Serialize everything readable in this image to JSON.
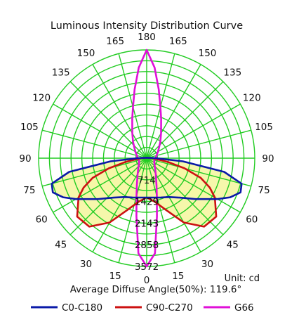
{
  "chart_data": {
    "type": "polar",
    "title": "Luminous Intensity Distribution Curve",
    "unit_label": "Unit: cd",
    "angle_ticks": [
      "0",
      "15",
      "30",
      "45",
      "60",
      "75",
      "90",
      "105",
      "120",
      "135",
      "150",
      "165",
      "180"
    ],
    "radial_labels": [
      "714",
      "1429",
      "2143",
      "2858",
      "3572"
    ],
    "r_max": 3572,
    "grid": true,
    "ring_step": 357.2,
    "spoke_step_deg": 15,
    "series": [
      {
        "name": "C0-C180",
        "color": "#0a1aa8",
        "angles": [
          0,
          10,
          20,
          30,
          40,
          50,
          60,
          65,
          70,
          75,
          80,
          85,
          90,
          95,
          100,
          110,
          120,
          140,
          160,
          180
        ],
        "values": [
          1300,
          1320,
          1380,
          1480,
          1700,
          2100,
          2700,
          3050,
          3300,
          3250,
          2600,
          1200,
          300,
          120,
          60,
          40,
          30,
          20,
          15,
          10
        ]
      },
      {
        "name": "C90-C270",
        "color": "#cc1111",
        "angles": [
          0,
          10,
          20,
          30,
          40,
          50,
          60,
          65,
          70,
          75,
          80,
          90,
          100,
          120,
          140,
          160,
          180
        ],
        "values": [
          1300,
          1450,
          1800,
          2450,
          2950,
          3000,
          2600,
          2300,
          1900,
          1300,
          700,
          200,
          60,
          30,
          20,
          15,
          10
        ]
      },
      {
        "name": "G66",
        "color": "#e010d8",
        "angles": [
          0,
          5,
          10,
          15,
          20,
          30,
          40,
          50,
          60,
          70,
          80,
          85,
          90,
          95,
          100,
          110,
          120,
          130,
          140,
          150,
          160,
          165,
          170,
          175,
          180
        ],
        "values": [
          3572,
          3150,
          1950,
          1300,
          950,
          600,
          430,
          340,
          290,
          270,
          270,
          280,
          290,
          300,
          320,
          360,
          430,
          530,
          700,
          950,
          1400,
          1750,
          2300,
          3000,
          3572
        ]
      }
    ]
  },
  "footer": {
    "average_text": "Average Diffuse Angle(50%): 119.6°"
  }
}
